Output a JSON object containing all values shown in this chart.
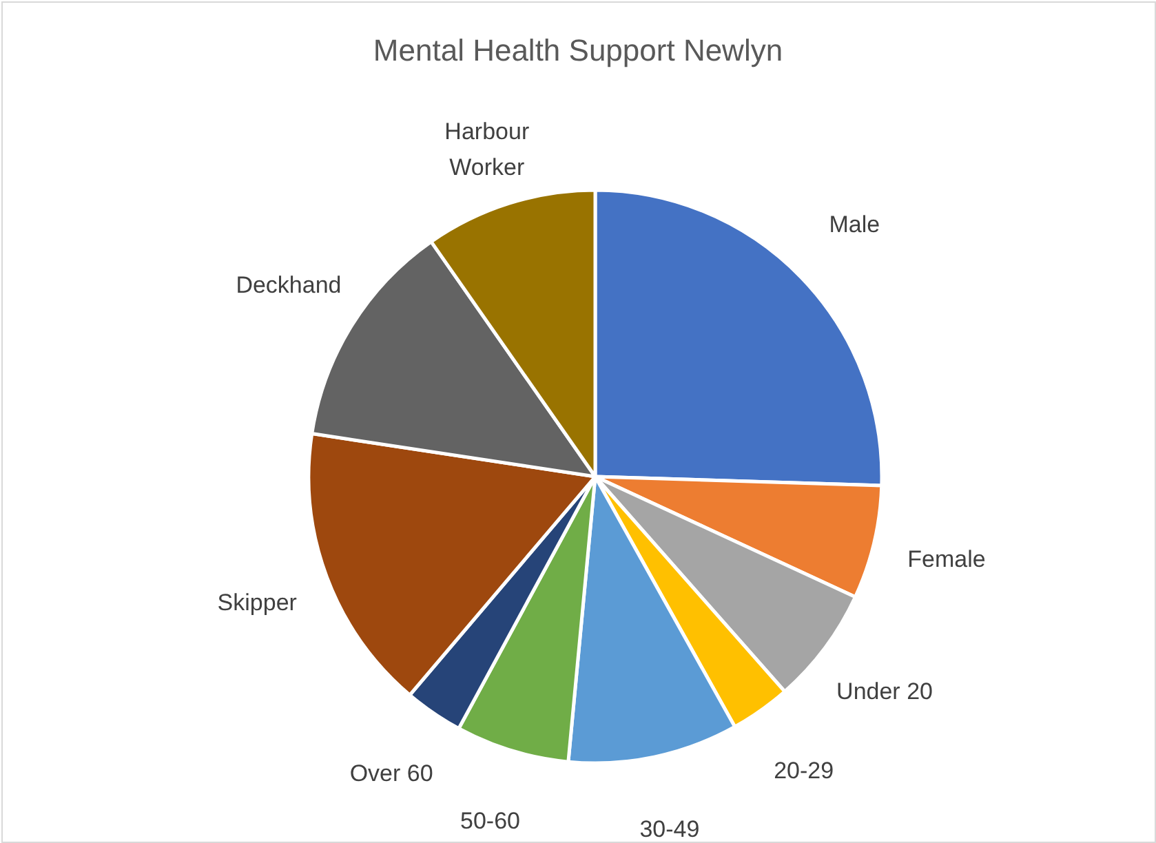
{
  "chart_data": {
    "type": "pie",
    "title": "Mental Health Support Newlyn",
    "categories": [
      "Male",
      "Female",
      "Under 20",
      "20-29",
      "30-49",
      "50-60",
      "Over 60",
      "Skipper",
      "Deckhand",
      "Harbour Worker"
    ],
    "values": [
      25.5,
      6.4,
      6.6,
      3.4,
      9.6,
      6.4,
      3.3,
      16.2,
      12.9,
      9.7
    ],
    "colors": [
      "#4472c4",
      "#ed7d31",
      "#a5a5a5",
      "#ffc000",
      "#5b9bd5",
      "#70ad47",
      "#264478",
      "#9e480e",
      "#636363",
      "#997300"
    ],
    "legend": false
  }
}
